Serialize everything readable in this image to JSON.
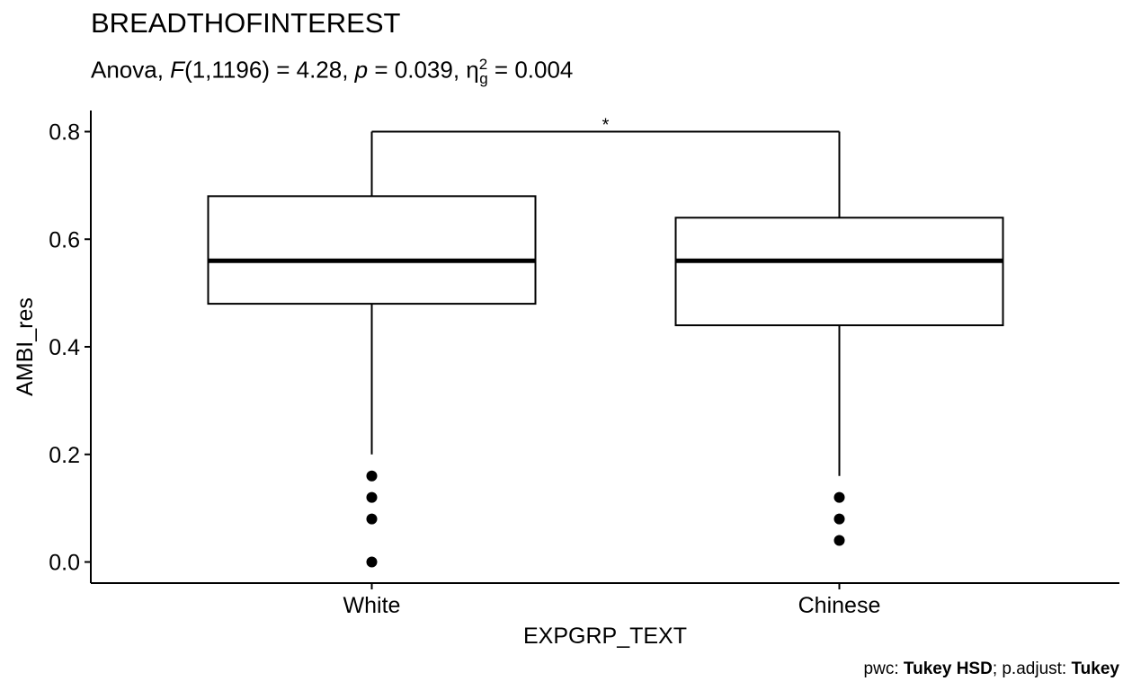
{
  "chart_data": {
    "type": "box",
    "title": "BREADTHOFINTEREST",
    "subtitle": {
      "prefix": "Anova, ",
      "f_label": "F",
      "f_df": "(1,1196) = 4.28, ",
      "p_label": "p",
      "p_value": " = 0.039, ",
      "eta_symbol": "η",
      "eta_sup": "2",
      "eta_sub": "g",
      "eta_value": " = 0.004"
    },
    "caption": {
      "pwc_prefix": "pwc: ",
      "pwc_method": "Tukey HSD",
      "adjust_prefix": "; p.adjust: ",
      "adjust_method": "Tukey"
    },
    "xlabel": "EXPGRP_TEXT",
    "ylabel": "AMBI_res",
    "ylim": [
      -0.04,
      0.84
    ],
    "yticks": [
      0.0,
      0.2,
      0.4,
      0.6,
      0.8
    ],
    "ytick_labels": [
      "0.0",
      "0.2",
      "0.4",
      "0.6",
      "0.8"
    ],
    "categories": [
      "White",
      "Chinese"
    ],
    "boxes": [
      {
        "category": "White",
        "q1": 0.48,
        "median": 0.56,
        "q3": 0.68,
        "whisker_low": 0.2,
        "whisker_high": 0.8,
        "outliers": [
          0.16,
          0.12,
          0.08,
          0.0
        ]
      },
      {
        "category": "Chinese",
        "q1": 0.44,
        "median": 0.56,
        "q3": 0.64,
        "whisker_low": 0.16,
        "whisker_high": 0.8,
        "outliers": [
          0.12,
          0.08,
          0.04
        ]
      }
    ],
    "significance": {
      "from": "White",
      "to": "Chinese",
      "y": 0.8,
      "label": "*"
    },
    "grid": false,
    "colors": {
      "box_fill": "#ffffff",
      "stroke": "#000000"
    }
  }
}
